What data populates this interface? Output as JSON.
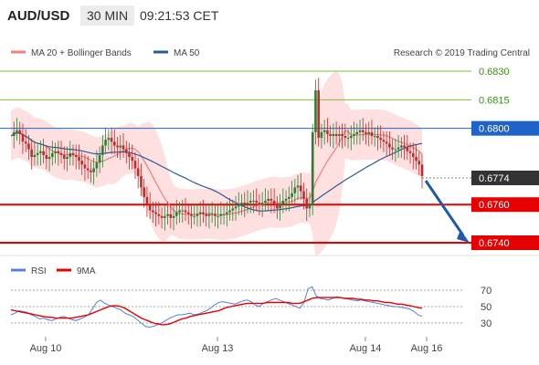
{
  "header": {
    "symbol": "AUD/USD",
    "timeframe": "30 MIN",
    "time": "09:21:53 CET"
  },
  "legend": {
    "ma20_label": "MA 20 + Bollinger Bands",
    "ma50_label": "MA 50",
    "copyright": "Research © 2019 Trading Central",
    "rsi_label": "RSI",
    "ma9_label": "9MA"
  },
  "colors": {
    "ma20": "#f08080",
    "bollinger_fill": "#fdd5d5",
    "ma50": "#2b5a9b",
    "candle_up": "#2e7d32",
    "candle_down": "#c62828",
    "resistance": "#7bbf3c",
    "support": "#e60000",
    "pivot": "#1e64c8",
    "current": "#333333",
    "rsi": "#5b7fd6",
    "ma9": "#e60000",
    "arrow": "#1f5aa8"
  },
  "chart_data": [
    {
      "type": "candlestick",
      "title": "",
      "ylim": [
        0.6735,
        0.6835
      ],
      "x_ticks": [
        "Aug 10",
        "Aug 13",
        "Aug 14",
        "Aug 16"
      ],
      "levels": [
        {
          "value": 0.683,
          "label": "0.6830",
          "kind": "resistance"
        },
        {
          "value": 0.6815,
          "label": "0.6815",
          "kind": "resistance"
        },
        {
          "value": 0.68,
          "label": "0.6800",
          "kind": "pivot"
        },
        {
          "value": 0.6774,
          "label": "0.6774",
          "kind": "current"
        },
        {
          "value": 0.676,
          "label": "0.6760",
          "kind": "support"
        },
        {
          "value": 0.674,
          "label": "0.6740",
          "kind": "support"
        }
      ],
      "close": [
        0.6796,
        0.6798,
        0.6799,
        0.6797,
        0.6793,
        0.6792,
        0.6789,
        0.6785,
        0.6786,
        0.6787,
        0.6788,
        0.6786,
        0.6784,
        0.6785,
        0.6787,
        0.6788,
        0.6787,
        0.6786,
        0.6784,
        0.6785,
        0.6787,
        0.6786,
        0.6785,
        0.6783,
        0.6781,
        0.6779,
        0.6778,
        0.6777,
        0.6779,
        0.6782,
        0.6786,
        0.6791,
        0.6794,
        0.6795,
        0.6793,
        0.6791,
        0.679,
        0.6791,
        0.6789,
        0.6787,
        0.6785,
        0.6783,
        0.6779,
        0.6775,
        0.6769,
        0.6764,
        0.676,
        0.6757,
        0.6756,
        0.6755,
        0.6754,
        0.6753,
        0.6754,
        0.6755,
        0.6753,
        0.6754,
        0.6756,
        0.6757,
        0.6757,
        0.6756,
        0.6755,
        0.6754,
        0.6754,
        0.6755,
        0.6756,
        0.6755,
        0.6754,
        0.6755,
        0.6755,
        0.6754,
        0.6754,
        0.6755,
        0.6755,
        0.6756,
        0.6757,
        0.6758,
        0.6759,
        0.676,
        0.6761,
        0.676,
        0.6761,
        0.6762,
        0.6762,
        0.6761,
        0.676,
        0.6761,
        0.6762,
        0.6763,
        0.6762,
        0.676,
        0.6758,
        0.676,
        0.6762,
        0.6763,
        0.6764,
        0.6766,
        0.6769,
        0.677,
        0.6767,
        0.6763,
        0.6758,
        0.676,
        0.6798,
        0.682,
        0.6795,
        0.6798,
        0.6799,
        0.6797,
        0.6796,
        0.6797,
        0.6796,
        0.6797,
        0.6796,
        0.6795,
        0.6795,
        0.6796,
        0.6797,
        0.6798,
        0.6799,
        0.6798,
        0.6797,
        0.6798,
        0.6796,
        0.6796,
        0.6795,
        0.6794,
        0.6793,
        0.6792,
        0.679,
        0.6789,
        0.6789,
        0.679,
        0.6791,
        0.679,
        0.6788,
        0.6787,
        0.6785,
        0.6783,
        0.6781,
        0.6775
      ]
    },
    {
      "type": "line",
      "title": "RSI",
      "ylim": [
        20,
        80
      ],
      "y_ticks": [
        70,
        50,
        30
      ],
      "series": [
        {
          "name": "RSI",
          "values": [
            40,
            42,
            45,
            44,
            43,
            40,
            38,
            35,
            36,
            34,
            33,
            35,
            37,
            38,
            36,
            34,
            33,
            35,
            37,
            40,
            47,
            55,
            58,
            54,
            52,
            50,
            48,
            46,
            42,
            40,
            38,
            34,
            30,
            26,
            25,
            26,
            28,
            30,
            33,
            36,
            38,
            40,
            40,
            41,
            42,
            40,
            41,
            43,
            45,
            48,
            52,
            55,
            56,
            55,
            54,
            53,
            55,
            57,
            58,
            56,
            52,
            50,
            54,
            56,
            58,
            60,
            58,
            56,
            54,
            52,
            50,
            48,
            55,
            72,
            74,
            63,
            60,
            59,
            58,
            60,
            62,
            61,
            60,
            59,
            58,
            57,
            58,
            57,
            56,
            55,
            54,
            53,
            52,
            51,
            50,
            50,
            49,
            48,
            47,
            44,
            40,
            38
          ]
        },
        {
          "name": "9MA",
          "values": [
            46,
            45,
            44,
            43,
            42,
            41,
            40,
            39,
            38,
            37,
            37,
            36,
            36,
            36,
            36,
            36,
            37,
            38,
            39,
            40,
            42,
            44,
            46,
            48,
            50,
            51,
            51,
            50,
            48,
            45,
            42,
            39,
            36,
            34,
            32,
            30,
            29,
            28,
            28,
            29,
            31,
            33,
            35,
            36,
            38,
            39,
            40,
            41,
            42,
            43,
            44,
            45,
            47,
            49,
            50,
            51,
            52,
            53,
            54,
            54,
            54,
            54,
            54,
            55,
            55,
            55,
            55,
            55,
            55,
            54,
            54,
            54,
            56,
            58,
            60,
            61,
            61,
            61,
            61,
            61,
            61,
            61,
            60,
            60,
            60,
            59,
            59,
            58,
            58,
            57,
            57,
            56,
            55,
            55,
            54,
            53,
            53,
            52,
            51,
            50,
            49,
            48
          ]
        }
      ]
    }
  ]
}
